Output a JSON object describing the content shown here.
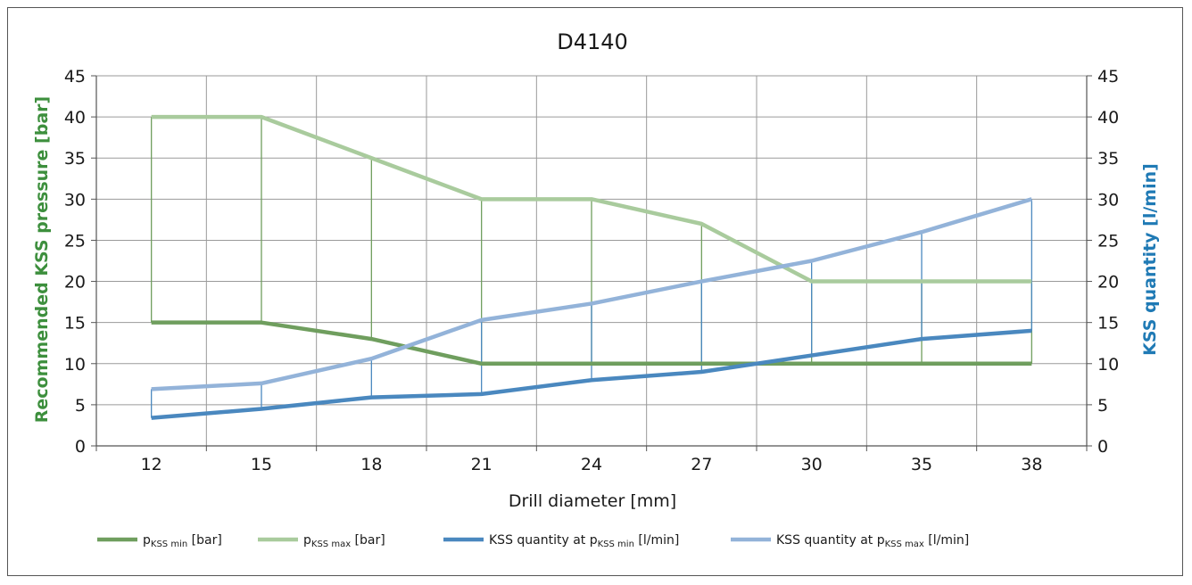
{
  "chart_data": {
    "type": "line",
    "title": "D4140",
    "xlabel": "Drill diameter [mm]",
    "ylabel_left": "Recommended KSS pressure [bar]",
    "ylabel_right": "KSS quantity [l/min]",
    "categories": [
      "12",
      "15",
      "18",
      "21",
      "24",
      "27",
      "30",
      "35",
      "38"
    ],
    "ylim_left": [
      0,
      45
    ],
    "ylim_right": [
      0,
      45
    ],
    "y_ticks": [
      "0",
      "5",
      "10",
      "15",
      "20",
      "25",
      "30",
      "35",
      "40",
      "45"
    ],
    "grid": true,
    "legend_position": "bottom",
    "series": [
      {
        "name": "pKSS min [bar]",
        "legend": {
          "pre": "p",
          "sub": "KSS min",
          "post": " [bar]"
        },
        "axis": "left",
        "color": "#6f9e5e",
        "values": [
          15,
          15,
          13,
          10,
          10,
          10,
          10,
          10,
          10
        ]
      },
      {
        "name": "pKSS max [bar]",
        "legend": {
          "pre": "p",
          "sub": "KSS max",
          "post": " [bar]"
        },
        "axis": "left",
        "color": "#a9cb9d",
        "values": [
          40,
          40,
          35,
          30,
          30,
          27,
          20,
          20,
          20
        ]
      },
      {
        "name": "KSS quantity at pKSS min [l/min]",
        "legend": {
          "pre": "KSS quantity at p",
          "sub": "KSS min",
          "post": " [l/min]"
        },
        "axis": "right",
        "color": "#4a88bf",
        "values": [
          3.4,
          4.5,
          5.9,
          6.3,
          8.0,
          9.0,
          11.0,
          13.0,
          14.0
        ]
      },
      {
        "name": "KSS quantity at pKSS max [l/min]",
        "legend": {
          "pre": "KSS quantity at p",
          "sub": "KSS max",
          "post": " [l/min]"
        },
        "axis": "right",
        "color": "#93b3d9",
        "values": [
          6.9,
          7.6,
          10.6,
          15.3,
          17.3,
          20.0,
          22.5,
          26.0,
          30.0
        ]
      }
    ],
    "colors": {
      "left_axis_label": "#3d8f3d",
      "right_axis_label": "#1f7ab5",
      "grid": "#9a9a9a",
      "green_droplines": "#6f9e5e",
      "blue_droplines": "#4a88bf"
    }
  }
}
